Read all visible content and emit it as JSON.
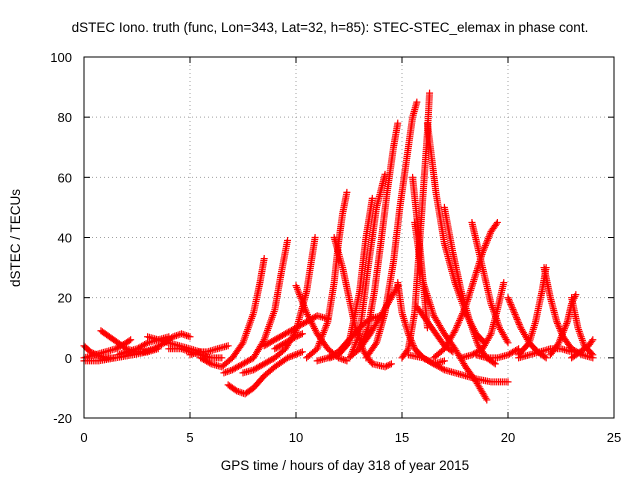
{
  "chart_data": {
    "type": "scatter",
    "title": "dSTEC Iono. truth (func, Lon=343, Lat=32, h=85): STEC-STEC_elemax in phase cont.",
    "xlabel": "GPS time / hours of day 318 of year 2015",
    "ylabel": "dSTEC  / TECUs",
    "xlim": [
      0,
      25
    ],
    "ylim": [
      -20,
      100
    ],
    "xticks": [
      "0",
      "5",
      "10",
      "15",
      "20",
      "25"
    ],
    "yticks": [
      "-20",
      "0",
      "20",
      "40",
      "60",
      "80",
      "100"
    ],
    "grid": true,
    "marker": "+",
    "series_color": "#ff0000",
    "series": [
      {
        "x": [
          0.0,
          0.3,
          0.6,
          1.0,
          1.4
        ],
        "y": [
          4,
          2,
          1,
          0,
          0
        ]
      },
      {
        "x": [
          0.0,
          0.5,
          1.0,
          1.5,
          2.0,
          2.2
        ],
        "y": [
          0,
          1,
          2,
          3,
          5,
          6
        ]
      },
      {
        "x": [
          0.8,
          1.2,
          1.6,
          2.0,
          2.5,
          3.0
        ],
        "y": [
          9,
          7,
          5,
          3,
          2,
          2
        ]
      },
      {
        "x": [
          0.0,
          0.7,
          1.5,
          2.3,
          3.0,
          3.5
        ],
        "y": [
          -1,
          -1,
          0,
          1,
          2,
          3
        ]
      },
      {
        "x": [
          1.6,
          2.0,
          2.5,
          3.0,
          3.5,
          4.0
        ],
        "y": [
          1,
          2,
          3,
          5,
          6,
          7
        ]
      },
      {
        "x": [
          3.0,
          3.5,
          4.0,
          4.5,
          5.0,
          5.5
        ],
        "y": [
          7,
          6,
          5,
          4,
          3,
          2
        ]
      },
      {
        "x": [
          2.8,
          3.3,
          3.8,
          4.2,
          4.6,
          5.0
        ],
        "y": [
          2,
          3,
          5,
          7,
          8,
          7
        ]
      },
      {
        "x": [
          4.0,
          4.6,
          5.0,
          5.5,
          6.0,
          6.5
        ],
        "y": [
          3,
          3,
          2,
          1,
          0,
          0
        ]
      },
      {
        "x": [
          5.0,
          5.4,
          5.8,
          6.3,
          6.8
        ],
        "y": [
          1,
          2,
          2,
          3,
          4
        ]
      },
      {
        "x": [
          5.5,
          6.0,
          6.5,
          7.0,
          7.5,
          8.0,
          8.3,
          8.5
        ],
        "y": [
          0,
          -2,
          -3,
          0,
          5,
          15,
          25,
          33
        ]
      },
      {
        "x": [
          6.6,
          7.0,
          7.5,
          8.0,
          8.5,
          9.0,
          9.3,
          9.6
        ],
        "y": [
          -5,
          -4,
          -2,
          0,
          6,
          16,
          28,
          39
        ]
      },
      {
        "x": [
          6.8,
          7.2,
          7.6,
          8.0,
          8.5,
          9.0,
          9.6,
          10.3
        ],
        "y": [
          -9,
          -11,
          -12,
          -10,
          -6,
          -3,
          0,
          2
        ]
      },
      {
        "x": [
          7.5,
          8.0,
          8.5,
          9.0,
          9.5,
          10.0,
          10.5,
          10.9
        ],
        "y": [
          -5,
          -4,
          -2,
          0,
          3,
          9,
          22,
          40
        ]
      },
      {
        "x": [
          8.5,
          9.0,
          9.5,
          10.0,
          10.5,
          11.0,
          11.5
        ],
        "y": [
          4,
          6,
          8,
          10,
          12,
          14,
          13
        ]
      },
      {
        "x": [
          9.0,
          9.5,
          10.0,
          10.3
        ],
        "y": [
          3,
          5,
          7,
          8
        ]
      },
      {
        "x": [
          10.0,
          10.5,
          11.0,
          11.5,
          12.0,
          12.4
        ],
        "y": [
          24,
          15,
          8,
          3,
          0,
          -1
        ]
      },
      {
        "x": [
          10.5,
          11.0,
          11.5,
          11.8,
          12.0,
          12.2,
          12.4
        ],
        "y": [
          0,
          3,
          12,
          25,
          38,
          48,
          55
        ]
      },
      {
        "x": [
          11.0,
          11.5,
          12.0,
          12.5,
          13.0,
          13.5,
          14.0
        ],
        "y": [
          -1,
          0,
          2,
          6,
          10,
          13,
          14
        ]
      },
      {
        "x": [
          11.8,
          12.2,
          12.5,
          12.8,
          13.2,
          13.6,
          14.2,
          14.5
        ],
        "y": [
          40,
          30,
          20,
          10,
          2,
          -2,
          -3,
          -2
        ]
      },
      {
        "x": [
          11.6,
          12.0,
          12.5,
          13.0,
          13.3,
          13.6
        ],
        "y": [
          0,
          1,
          5,
          22,
          40,
          53
        ]
      },
      {
        "x": [
          12.5,
          13.0,
          13.4,
          13.7,
          14.0,
          14.3,
          14.6,
          14.8
        ],
        "y": [
          0,
          3,
          10,
          22,
          38,
          55,
          70,
          78
        ]
      },
      {
        "x": [
          12.6,
          13.0,
          13.4,
          13.8,
          14.2
        ],
        "y": [
          1,
          8,
          30,
          50,
          61
        ]
      },
      {
        "x": [
          13.0,
          13.5,
          14.0,
          14.5,
          14.8
        ],
        "y": [
          3,
          8,
          14,
          20,
          24
        ]
      },
      {
        "x": [
          13.3,
          13.8,
          14.2,
          14.6,
          14.9,
          15.2,
          15.5,
          15.7
        ],
        "y": [
          0,
          5,
          15,
          32,
          50,
          65,
          80,
          85
        ]
      },
      {
        "x": [
          14.8,
          15.0,
          15.3,
          15.6,
          16.0,
          16.5,
          17.0
        ],
        "y": [
          25,
          15,
          8,
          3,
          0,
          -2,
          -1
        ]
      },
      {
        "x": [
          15.0,
          15.3,
          15.6,
          15.8,
          16.0,
          16.2,
          16.3
        ],
        "y": [
          0,
          3,
          15,
          35,
          55,
          75,
          88
        ]
      },
      {
        "x": [
          15.5,
          15.8,
          16.0,
          16.2
        ],
        "y": [
          60,
          40,
          25,
          10
        ]
      },
      {
        "x": [
          15.6,
          16.0,
          16.5,
          17.0,
          17.5,
          18.0,
          18.5,
          19.0
        ],
        "y": [
          45,
          25,
          14,
          8,
          3,
          -3,
          -8,
          -14
        ]
      },
      {
        "x": [
          15.3,
          16.0,
          16.5,
          17.0,
          17.5,
          18.0,
          18.5,
          19.2,
          20.0
        ],
        "y": [
          1,
          0,
          -2,
          -4,
          -5,
          -6,
          -7,
          -8,
          -8
        ]
      },
      {
        "x": [
          16.2,
          16.6,
          17.0,
          17.5,
          18.0,
          18.5,
          18.9
        ],
        "y": [
          78,
          55,
          38,
          25,
          15,
          8,
          5
        ]
      },
      {
        "x": [
          15.7,
          16.2,
          16.6,
          17.0,
          17.4
        ],
        "y": [
          17,
          12,
          8,
          4,
          2
        ]
      },
      {
        "x": [
          17.0,
          17.4,
          17.8,
          18.2,
          18.6,
          19.0,
          19.4
        ],
        "y": [
          50,
          35,
          22,
          12,
          4,
          0,
          -2
        ]
      },
      {
        "x": [
          16.5,
          17.0,
          17.5,
          18.0,
          18.4,
          18.8,
          19.2,
          19.5
        ],
        "y": [
          0,
          3,
          9,
          17,
          26,
          35,
          42,
          45
        ]
      },
      {
        "x": [
          18.3,
          18.8,
          19.2,
          19.6,
          20.0
        ],
        "y": [
          45,
          30,
          18,
          10,
          5
        ]
      },
      {
        "x": [
          17.8,
          18.3,
          18.8,
          19.2,
          19.5,
          19.8
        ],
        "y": [
          0,
          1,
          3,
          8,
          16,
          25
        ]
      },
      {
        "x": [
          18.5,
          19.0,
          19.5,
          20.0,
          20.5
        ],
        "y": [
          1,
          0,
          0,
          1,
          3
        ]
      },
      {
        "x": [
          20.0,
          20.3,
          20.6,
          21.0,
          21.4,
          21.8
        ],
        "y": [
          20,
          15,
          10,
          5,
          2,
          0
        ]
      },
      {
        "x": [
          20.5,
          21.0,
          21.3,
          21.6,
          21.8
        ],
        "y": [
          1,
          5,
          12,
          22,
          30
        ]
      },
      {
        "x": [
          21.7,
          22.0,
          22.3,
          22.6,
          23.0,
          23.5,
          24.0
        ],
        "y": [
          30,
          20,
          12,
          7,
          3,
          1,
          0
        ]
      },
      {
        "x": [
          22.0,
          22.4,
          22.8,
          23.0,
          23.2
        ],
        "y": [
          1,
          5,
          12,
          18,
          21
        ]
      },
      {
        "x": [
          23.0,
          23.3,
          23.6,
          24.0
        ],
        "y": [
          20,
          10,
          4,
          1
        ]
      },
      {
        "x": [
          23.0,
          23.4,
          23.8,
          24.0
        ],
        "y": [
          0,
          2,
          4,
          6
        ]
      },
      {
        "x": [
          20.5,
          21.0,
          21.5,
          22.0,
          22.5,
          23.0
        ],
        "y": [
          0,
          1,
          2,
          3,
          3,
          2
        ]
      }
    ]
  }
}
